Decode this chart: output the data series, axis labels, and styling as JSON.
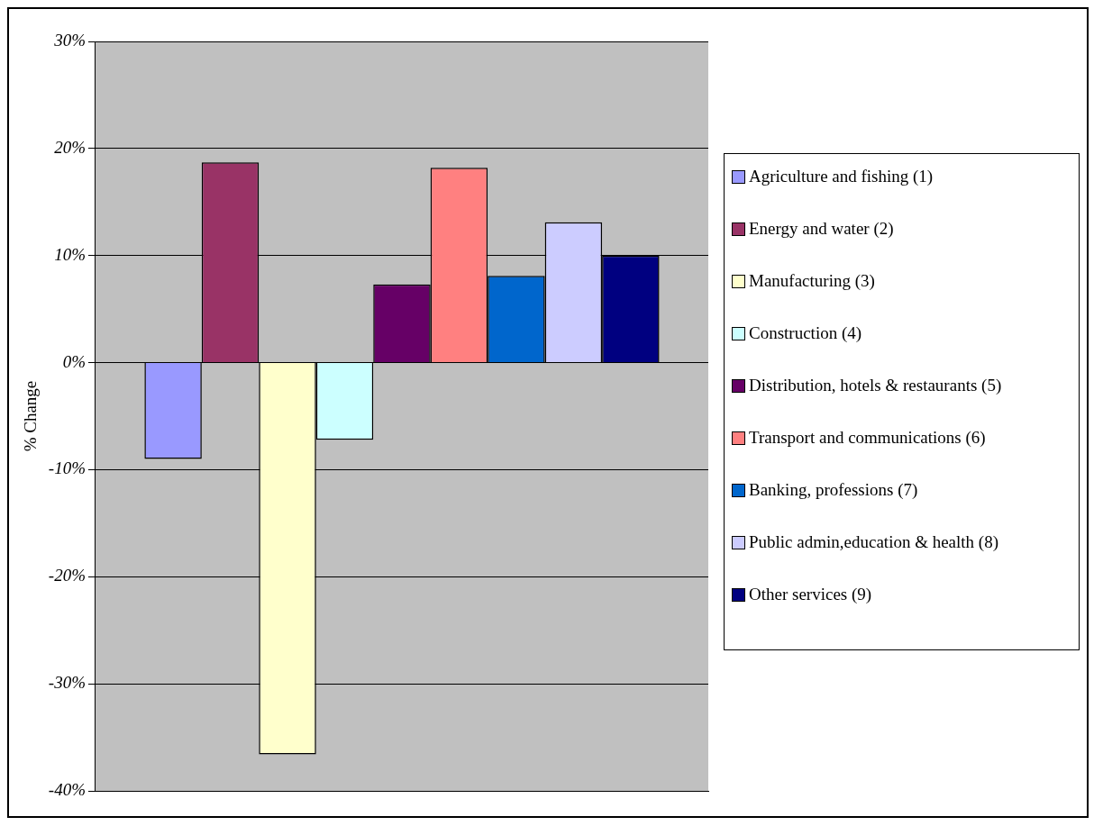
{
  "chart_data": {
    "type": "bar",
    "ylabel": "% Change",
    "categories": [
      null
    ],
    "series": [
      {
        "name": "Agriculture and fishing (1)",
        "color": "#9999ff",
        "values": [
          -9.0
        ]
      },
      {
        "name": "Energy and water (2)",
        "color": "#993366",
        "values": [
          18.7
        ]
      },
      {
        "name": "Manufacturing (3)",
        "color": "#ffffcc",
        "values": [
          -36.6
        ]
      },
      {
        "name": "Construction (4)",
        "color": "#ccffff",
        "values": [
          -7.2
        ]
      },
      {
        "name": "Distribution, hotels & restaurants (5)",
        "color": "#660066",
        "values": [
          7.3
        ]
      },
      {
        "name": "Transport and communications (6)",
        "color": "#ff8080",
        "values": [
          18.2
        ]
      },
      {
        "name": "Banking, professions (7)",
        "color": "#0066cc",
        "values": [
          8.1
        ]
      },
      {
        "name": "Public admin,education & health (8)",
        "color": "#ccccff",
        "values": [
          13.1
        ]
      },
      {
        "name": "Other services (9)",
        "color": "#000080",
        "values": [
          10.0
        ]
      }
    ],
    "ylim": [
      -40,
      30
    ],
    "yticks": [
      {
        "value": -40,
        "label": "-40%"
      },
      {
        "value": -30,
        "label": "-30%"
      },
      {
        "value": -20,
        "label": "-20%"
      },
      {
        "value": -10,
        "label": "-10%"
      },
      {
        "value": 0,
        "label": "0%"
      },
      {
        "value": 10,
        "label": "10%"
      },
      {
        "value": 20,
        "label": "20%"
      },
      {
        "value": 30,
        "label": "30%"
      }
    ],
    "grid": "y",
    "legend": "right",
    "tick_labels": "y"
  }
}
